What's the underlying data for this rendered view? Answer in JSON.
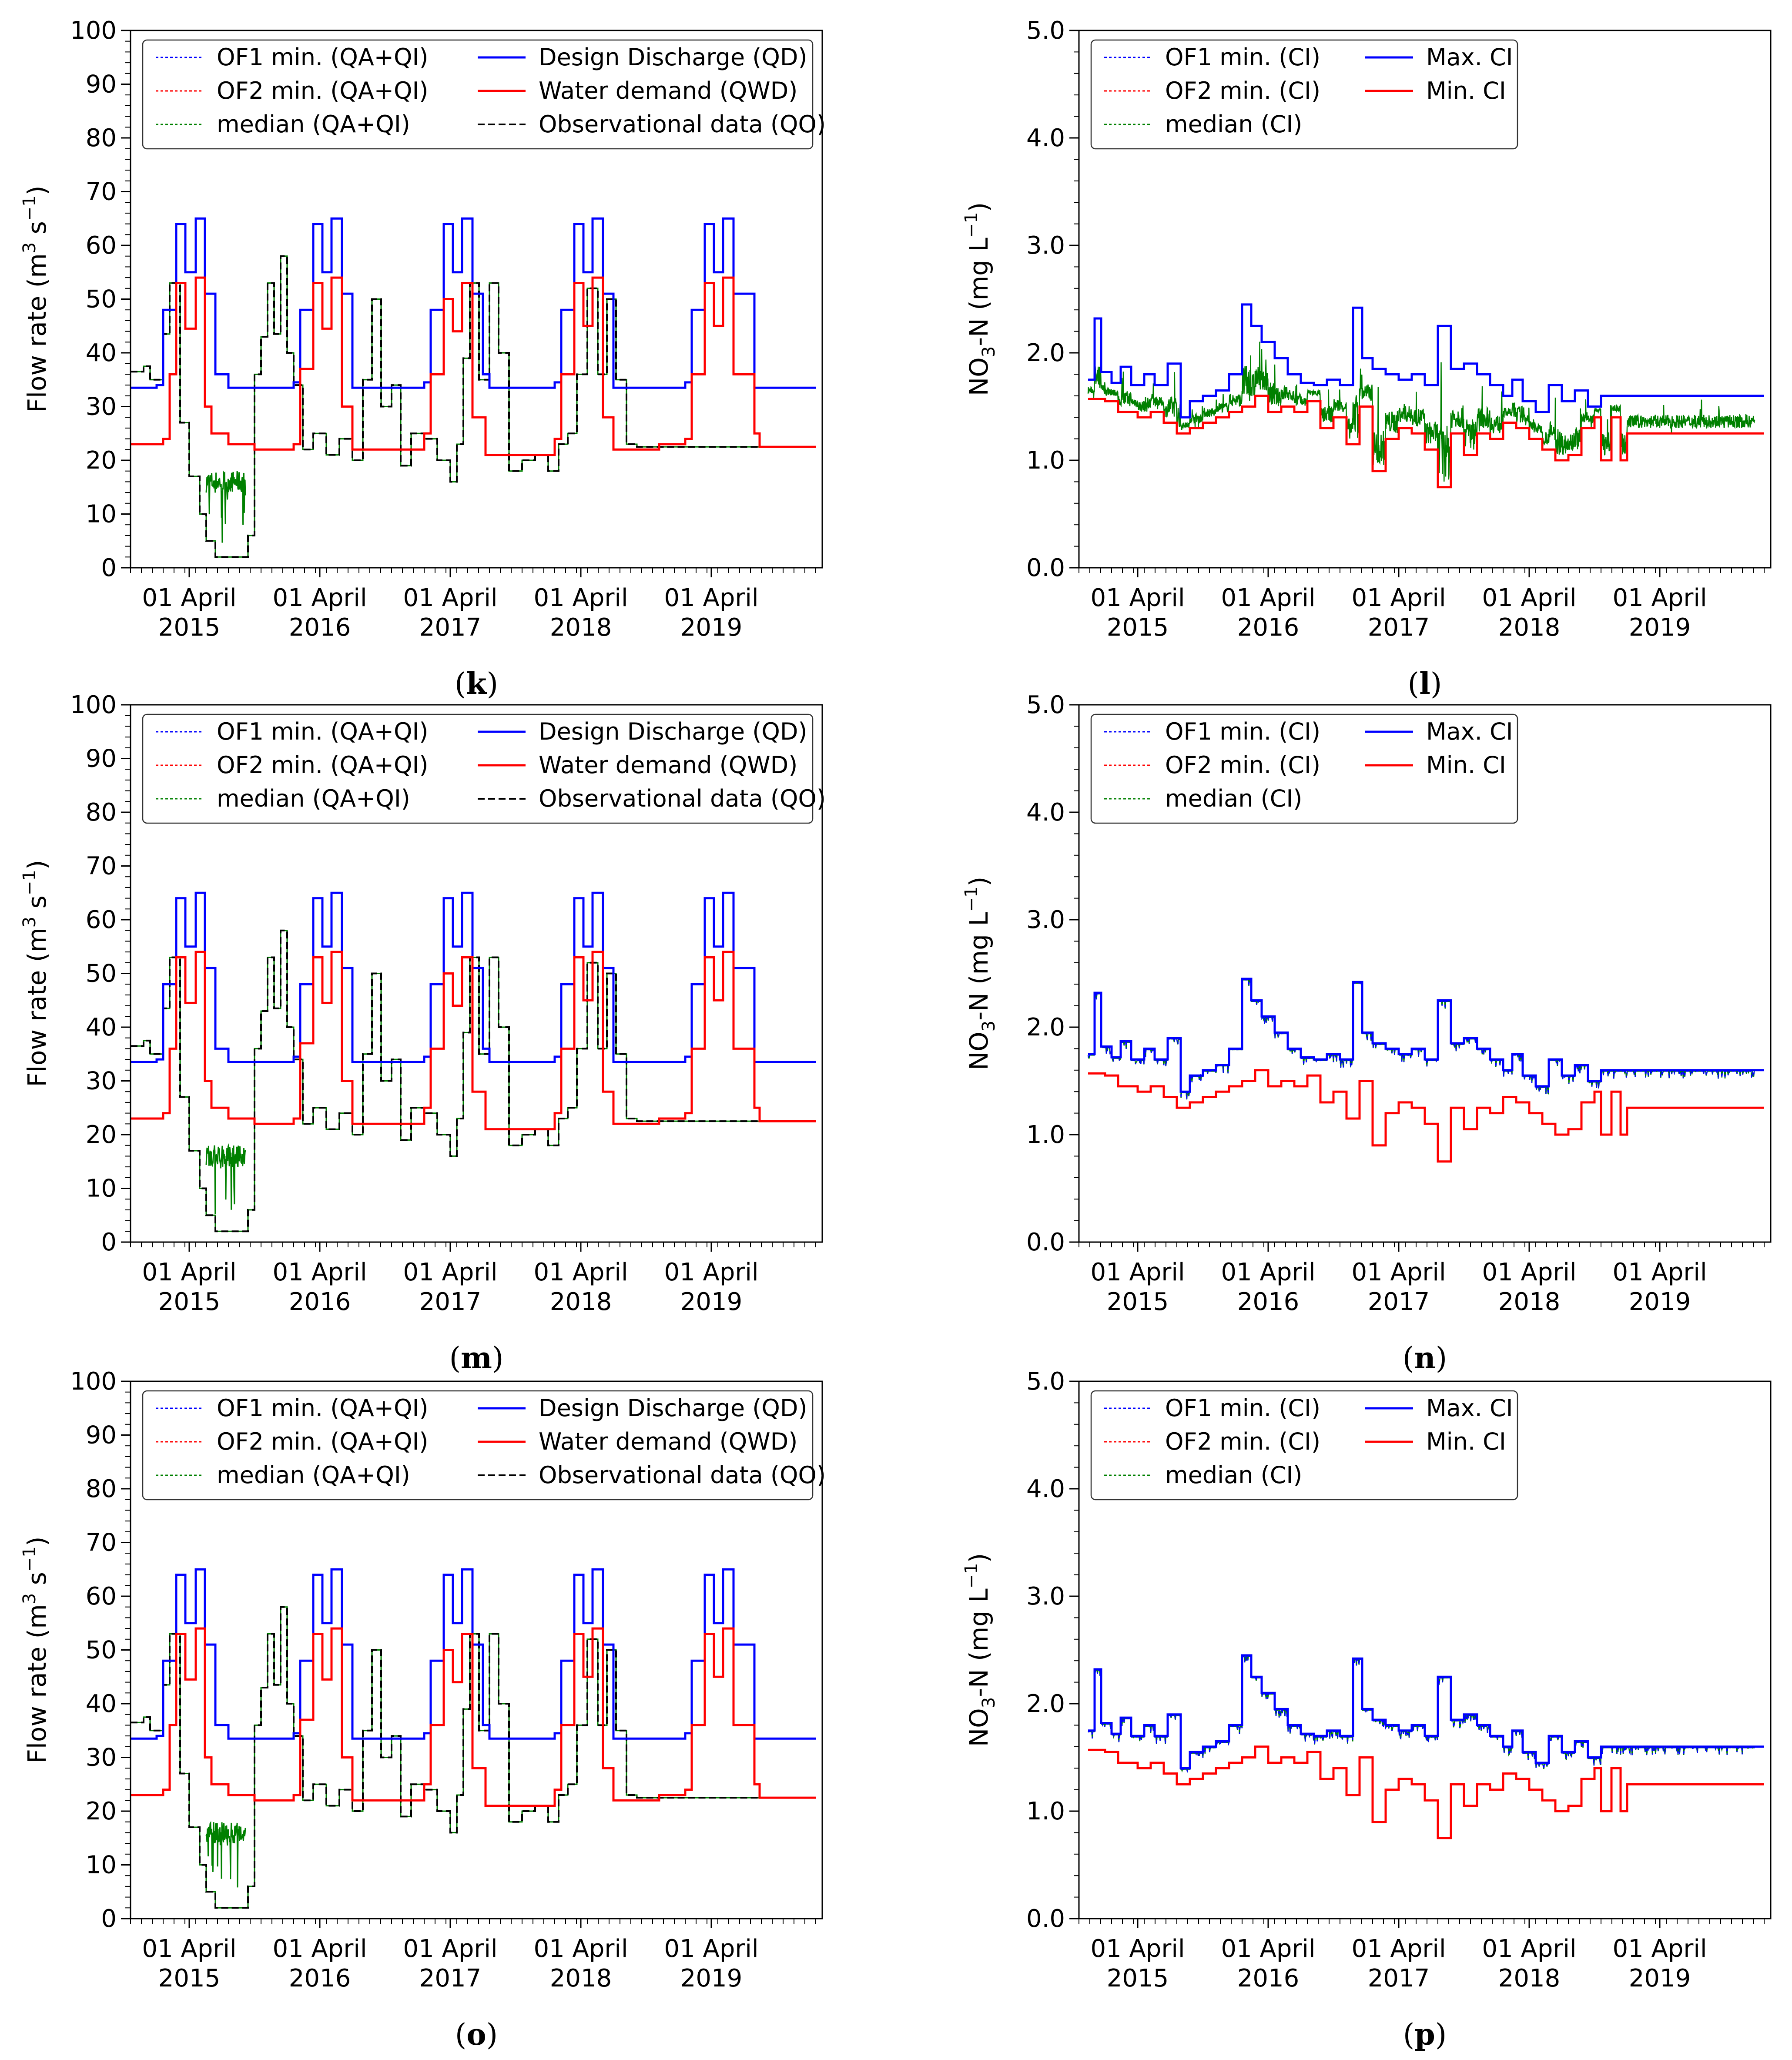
{
  "chart_data": [
    {
      "panel": "k",
      "type": "line",
      "ylabel_main": "Flow rate (m",
      "ylabel_sup1": "3",
      "ylabel_mid": " s",
      "ylabel_sup2": "−1",
      "ylabel_end": ")",
      "ylim": [
        0,
        100
      ],
      "yticks": [
        "0",
        "10",
        "20",
        "30",
        "40",
        "50",
        "60",
        "70",
        "80",
        "90",
        "100"
      ],
      "xticks": [
        {
          "line1": "01 April",
          "line2": "2015"
        },
        {
          "line1": "01 April",
          "line2": "2016"
        },
        {
          "line1": "01 April",
          "line2": "2017"
        },
        {
          "line1": "01 April",
          "line2": "2018"
        },
        {
          "line1": "01 April",
          "line2": "2019"
        }
      ],
      "legend": [
        "OF1 min. (QA+QI)",
        "OF2 min. (QA+QI)",
        "median (QA+QI)",
        "Design Discharge (QD)",
        "Water demand (QWD)",
        "Observational data (QO)"
      ],
      "series_colors": {
        "of1": "#0000ff",
        "of2": "#ff0000",
        "median": "#008000",
        "design": "#0000ff",
        "demand": "#ff0000",
        "obs": "#000000"
      }
    },
    {
      "panel": "l",
      "type": "line",
      "ylabel_main": "NO",
      "ylabel_sub": "3",
      "ylabel_mid": "-N (mg L",
      "ylabel_sup2": "−1",
      "ylabel_end": ")",
      "ylim": [
        0,
        5
      ],
      "yticks": [
        "0.0",
        "1.0",
        "2.0",
        "3.0",
        "4.0",
        "5.0"
      ],
      "xticks": [
        {
          "line1": "01 April",
          "line2": "2015"
        },
        {
          "line1": "01 April",
          "line2": "2016"
        },
        {
          "line1": "01 April",
          "line2": "2017"
        },
        {
          "line1": "01 April",
          "line2": "2018"
        },
        {
          "line1": "01 April",
          "line2": "2019"
        }
      ],
      "legend": [
        "OF1 min. (CI)",
        "OF2 min. (CI)",
        "median (CI)",
        "Max. CI",
        "Min. CI"
      ],
      "series_colors": {
        "of1": "#0000ff",
        "of2": "#ff0000",
        "median": "#008000",
        "max": "#0000ff",
        "min": "#ff0000"
      }
    },
    {
      "panel": "m",
      "type": "line",
      "ylabel_main": "Flow rate (m",
      "ylabel_sup1": "3",
      "ylabel_mid": " s",
      "ylabel_sup2": "−1",
      "ylabel_end": ")",
      "ylim": [
        0,
        100
      ],
      "yticks": [
        "0",
        "10",
        "20",
        "30",
        "40",
        "50",
        "60",
        "70",
        "80",
        "90",
        "100"
      ],
      "xticks": [
        {
          "line1": "01 April",
          "line2": "2015"
        },
        {
          "line1": "01 April",
          "line2": "2016"
        },
        {
          "line1": "01 April",
          "line2": "2017"
        },
        {
          "line1": "01 April",
          "line2": "2018"
        },
        {
          "line1": "01 April",
          "line2": "2019"
        }
      ],
      "legend": [
        "OF1 min. (QA+QI)",
        "OF2 min. (QA+QI)",
        "median (QA+QI)",
        "Design Discharge (QD)",
        "Water demand (QWD)",
        "Observational data (QO)"
      ],
      "series_colors": {
        "of1": "#0000ff",
        "of2": "#ff0000",
        "median": "#008000",
        "design": "#0000ff",
        "demand": "#ff0000",
        "obs": "#000000"
      }
    },
    {
      "panel": "n",
      "type": "line",
      "ylabel_main": "NO",
      "ylabel_sub": "3",
      "ylabel_mid": "-N (mg L",
      "ylabel_sup2": "−1",
      "ylabel_end": ")",
      "ylim": [
        0,
        5
      ],
      "yticks": [
        "0.0",
        "1.0",
        "2.0",
        "3.0",
        "4.0",
        "5.0"
      ],
      "xticks": [
        {
          "line1": "01 April",
          "line2": "2015"
        },
        {
          "line1": "01 April",
          "line2": "2016"
        },
        {
          "line1": "01 April",
          "line2": "2017"
        },
        {
          "line1": "01 April",
          "line2": "2018"
        },
        {
          "line1": "01 April",
          "line2": "2019"
        }
      ],
      "legend": [
        "OF1 min. (CI)",
        "OF2 min. (CI)",
        "median (CI)",
        "Max. CI",
        "Min. CI"
      ],
      "series_colors": {
        "of1": "#0000ff",
        "of2": "#ff0000",
        "median": "#008000",
        "max": "#0000ff",
        "min": "#ff0000"
      }
    },
    {
      "panel": "o",
      "type": "line",
      "ylabel_main": "Flow rate (m",
      "ylabel_sup1": "3",
      "ylabel_mid": " s",
      "ylabel_sup2": "−1",
      "ylabel_end": ")",
      "ylim": [
        0,
        100
      ],
      "yticks": [
        "0",
        "10",
        "20",
        "30",
        "40",
        "50",
        "60",
        "70",
        "80",
        "90",
        "100"
      ],
      "xticks": [
        {
          "line1": "01 April",
          "line2": "2015"
        },
        {
          "line1": "01 April",
          "line2": "2016"
        },
        {
          "line1": "01 April",
          "line2": "2017"
        },
        {
          "line1": "01 April",
          "line2": "2018"
        },
        {
          "line1": "01 April",
          "line2": "2019"
        }
      ],
      "legend": [
        "OF1 min. (QA+QI)",
        "OF2 min. (QA+QI)",
        "median (QA+QI)",
        "Design Discharge (QD)",
        "Water demand (QWD)",
        "Observational data (QO)"
      ],
      "series_colors": {
        "of1": "#0000ff",
        "of2": "#ff0000",
        "median": "#008000",
        "design": "#0000ff",
        "demand": "#ff0000",
        "obs": "#000000"
      }
    },
    {
      "panel": "p",
      "type": "line",
      "ylabel_main": "NO",
      "ylabel_sub": "3",
      "ylabel_mid": "-N (mg L",
      "ylabel_sup2": "−1",
      "ylabel_end": ")",
      "ylim": [
        0,
        5
      ],
      "yticks": [
        "0.0",
        "1.0",
        "2.0",
        "3.0",
        "4.0",
        "5.0"
      ],
      "xticks": [
        {
          "line1": "01 April",
          "line2": "2015"
        },
        {
          "line1": "01 April",
          "line2": "2016"
        },
        {
          "line1": "01 April",
          "line2": "2017"
        },
        {
          "line1": "01 April",
          "line2": "2018"
        },
        {
          "line1": "01 April",
          "line2": "2019"
        }
      ],
      "legend": [
        "OF1 min. (CI)",
        "OF2 min. (CI)",
        "median (CI)",
        "Max. CI",
        "Min. CI"
      ],
      "series_colors": {
        "of1": "#0000ff",
        "of2": "#ff0000",
        "median": "#008000",
        "max": "#0000ff",
        "min": "#ff0000"
      }
    }
  ],
  "flow_series": {
    "x_range_years": [
      2014.8,
      2020.1
    ],
    "design_discharge_steps": [
      [
        2014.8,
        33.5
      ],
      [
        2015.0,
        34
      ],
      [
        2015.05,
        48
      ],
      [
        2015.15,
        64
      ],
      [
        2015.22,
        55
      ],
      [
        2015.3,
        65
      ],
      [
        2015.37,
        51
      ],
      [
        2015.45,
        36
      ],
      [
        2015.55,
        33.5
      ],
      [
        2016.05,
        34.5
      ],
      [
        2016.1,
        48
      ],
      [
        2016.2,
        64
      ],
      [
        2016.27,
        55
      ],
      [
        2016.34,
        65
      ],
      [
        2016.42,
        51
      ],
      [
        2016.5,
        33.5
      ],
      [
        2017.05,
        34.5
      ],
      [
        2017.1,
        48
      ],
      [
        2017.2,
        64
      ],
      [
        2017.27,
        55
      ],
      [
        2017.34,
        65
      ],
      [
        2017.42,
        51
      ],
      [
        2017.5,
        36
      ],
      [
        2017.55,
        33.5
      ],
      [
        2018.05,
        34.5
      ],
      [
        2018.1,
        48
      ],
      [
        2018.2,
        64
      ],
      [
        2018.27,
        55
      ],
      [
        2018.34,
        65
      ],
      [
        2018.42,
        51
      ],
      [
        2018.5,
        33.5
      ],
      [
        2019.05,
        34.5
      ],
      [
        2019.1,
        48
      ],
      [
        2019.2,
        64
      ],
      [
        2019.27,
        55
      ],
      [
        2019.34,
        65
      ],
      [
        2019.42,
        51
      ],
      [
        2019.58,
        33.5
      ],
      [
        2020.05,
        33.5
      ]
    ],
    "water_demand_steps": [
      [
        2014.8,
        23
      ],
      [
        2015.05,
        24
      ],
      [
        2015.1,
        36
      ],
      [
        2015.15,
        53
      ],
      [
        2015.22,
        44.5
      ],
      [
        2015.3,
        54
      ],
      [
        2015.37,
        30
      ],
      [
        2015.42,
        25
      ],
      [
        2015.55,
        23
      ],
      [
        2015.75,
        22
      ],
      [
        2016.05,
        23
      ],
      [
        2016.1,
        37
      ],
      [
        2016.2,
        53
      ],
      [
        2016.27,
        44.5
      ],
      [
        2016.34,
        54
      ],
      [
        2016.42,
        30
      ],
      [
        2016.5,
        22
      ],
      [
        2017.05,
        25
      ],
      [
        2017.1,
        36
      ],
      [
        2017.2,
        50
      ],
      [
        2017.27,
        44
      ],
      [
        2017.34,
        53
      ],
      [
        2017.42,
        28
      ],
      [
        2017.52,
        21
      ],
      [
        2018.05,
        24
      ],
      [
        2018.1,
        36
      ],
      [
        2018.2,
        53
      ],
      [
        2018.27,
        45
      ],
      [
        2018.34,
        54
      ],
      [
        2018.42,
        28
      ],
      [
        2018.5,
        22
      ],
      [
        2018.85,
        23
      ],
      [
        2019.05,
        24
      ],
      [
        2019.1,
        36
      ],
      [
        2019.2,
        53
      ],
      [
        2019.27,
        45
      ],
      [
        2019.34,
        54
      ],
      [
        2019.42,
        36
      ],
      [
        2019.58,
        25
      ],
      [
        2019.62,
        22.5
      ],
      [
        2020.05,
        22.5
      ]
    ],
    "observed_steps": [
      [
        2014.8,
        36.5
      ],
      [
        2014.9,
        37.5
      ],
      [
        2014.95,
        35
      ],
      [
        2015.0,
        35
      ],
      [
        2015.05,
        43.5
      ],
      [
        2015.1,
        53
      ],
      [
        2015.18,
        27
      ],
      [
        2015.25,
        17
      ],
      [
        2015.33,
        10
      ],
      [
        2015.38,
        5
      ],
      [
        2015.45,
        2
      ],
      [
        2015.65,
        2
      ],
      [
        2015.7,
        6
      ],
      [
        2015.75,
        36
      ],
      [
        2015.8,
        43
      ],
      [
        2015.85,
        53
      ],
      [
        2015.9,
        43.5
      ],
      [
        2015.95,
        58
      ],
      [
        2016.0,
        40
      ],
      [
        2016.05,
        34
      ],
      [
        2016.12,
        22
      ],
      [
        2016.2,
        25
      ],
      [
        2016.3,
        21
      ],
      [
        2016.4,
        24
      ],
      [
        2016.5,
        20
      ],
      [
        2016.58,
        35
      ],
      [
        2016.65,
        50
      ],
      [
        2016.72,
        30
      ],
      [
        2016.8,
        34
      ],
      [
        2016.87,
        19
      ],
      [
        2016.95,
        25
      ],
      [
        2017.05,
        24
      ],
      [
        2017.15,
        20
      ],
      [
        2017.25,
        16
      ],
      [
        2017.3,
        23
      ],
      [
        2017.35,
        39
      ],
      [
        2017.4,
        53
      ],
      [
        2017.47,
        35
      ],
      [
        2017.55,
        53
      ],
      [
        2017.62,
        40
      ],
      [
        2017.7,
        18
      ],
      [
        2017.8,
        20
      ],
      [
        2017.9,
        21
      ],
      [
        2018.0,
        18
      ],
      [
        2018.08,
        23
      ],
      [
        2018.15,
        25
      ],
      [
        2018.22,
        36
      ],
      [
        2018.3,
        52
      ],
      [
        2018.38,
        36
      ],
      [
        2018.45,
        50
      ],
      [
        2018.52,
        35
      ],
      [
        2018.6,
        23
      ],
      [
        2018.68,
        22.5
      ],
      [
        2020.05,
        22.5
      ]
    ],
    "low_flow_window": [
      2015.38,
      2015.68
    ]
  },
  "no3_series": {
    "max_ci_steps": [
      [
        2014.87,
        1.75
      ],
      [
        2014.92,
        2.32
      ],
      [
        2014.97,
        1.82
      ],
      [
        2015.05,
        1.72
      ],
      [
        2015.12,
        1.87
      ],
      [
        2015.2,
        1.7
      ],
      [
        2015.3,
        1.8
      ],
      [
        2015.38,
        1.7
      ],
      [
        2015.48,
        1.9
      ],
      [
        2015.58,
        1.4
      ],
      [
        2015.65,
        1.55
      ],
      [
        2015.75,
        1.6
      ],
      [
        2015.85,
        1.65
      ],
      [
        2015.95,
        1.8
      ],
      [
        2016.05,
        2.45
      ],
      [
        2016.12,
        2.25
      ],
      [
        2016.2,
        2.1
      ],
      [
        2016.3,
        1.95
      ],
      [
        2016.4,
        1.8
      ],
      [
        2016.5,
        1.72
      ],
      [
        2016.6,
        1.7
      ],
      [
        2016.7,
        1.75
      ],
      [
        2016.8,
        1.7
      ],
      [
        2016.9,
        2.42
      ],
      [
        2016.97,
        1.95
      ],
      [
        2017.05,
        1.85
      ],
      [
        2017.15,
        1.8
      ],
      [
        2017.25,
        1.75
      ],
      [
        2017.35,
        1.8
      ],
      [
        2017.45,
        1.7
      ],
      [
        2017.55,
        2.25
      ],
      [
        2017.65,
        1.85
      ],
      [
        2017.75,
        1.9
      ],
      [
        2017.85,
        1.8
      ],
      [
        2017.95,
        1.7
      ],
      [
        2018.05,
        1.6
      ],
      [
        2018.12,
        1.75
      ],
      [
        2018.2,
        1.55
      ],
      [
        2018.3,
        1.45
      ],
      [
        2018.4,
        1.7
      ],
      [
        2018.5,
        1.55
      ],
      [
        2018.6,
        1.65
      ],
      [
        2018.7,
        1.5
      ],
      [
        2018.8,
        1.6
      ],
      [
        2020.05,
        1.6
      ]
    ],
    "min_ci_steps": [
      [
        2014.87,
        1.57
      ],
      [
        2015.0,
        1.55
      ],
      [
        2015.1,
        1.45
      ],
      [
        2015.25,
        1.4
      ],
      [
        2015.35,
        1.45
      ],
      [
        2015.45,
        1.35
      ],
      [
        2015.55,
        1.25
      ],
      [
        2015.65,
        1.3
      ],
      [
        2015.75,
        1.35
      ],
      [
        2015.85,
        1.4
      ],
      [
        2015.95,
        1.45
      ],
      [
        2016.05,
        1.5
      ],
      [
        2016.15,
        1.6
      ],
      [
        2016.25,
        1.45
      ],
      [
        2016.35,
        1.5
      ],
      [
        2016.45,
        1.45
      ],
      [
        2016.55,
        1.55
      ],
      [
        2016.65,
        1.3
      ],
      [
        2016.75,
        1.4
      ],
      [
        2016.85,
        1.15
      ],
      [
        2016.95,
        1.5
      ],
      [
        2017.05,
        0.9
      ],
      [
        2017.15,
        1.2
      ],
      [
        2017.25,
        1.3
      ],
      [
        2017.35,
        1.25
      ],
      [
        2017.45,
        1.1
      ],
      [
        2017.55,
        0.75
      ],
      [
        2017.65,
        1.25
      ],
      [
        2017.75,
        1.05
      ],
      [
        2017.85,
        1.25
      ],
      [
        2017.95,
        1.2
      ],
      [
        2018.05,
        1.35
      ],
      [
        2018.15,
        1.3
      ],
      [
        2018.25,
        1.2
      ],
      [
        2018.35,
        1.1
      ],
      [
        2018.45,
        1.0
      ],
      [
        2018.55,
        1.05
      ],
      [
        2018.65,
        1.3
      ],
      [
        2018.75,
        1.4
      ],
      [
        2018.8,
        1.0
      ],
      [
        2018.88,
        1.4
      ],
      [
        2018.95,
        1.0
      ],
      [
        2019.0,
        1.25
      ],
      [
        2020.05,
        1.25
      ]
    ]
  },
  "panel_labels": [
    "(k)",
    "(l)",
    "(m)",
    "(n)",
    "(o)",
    "(p)"
  ]
}
